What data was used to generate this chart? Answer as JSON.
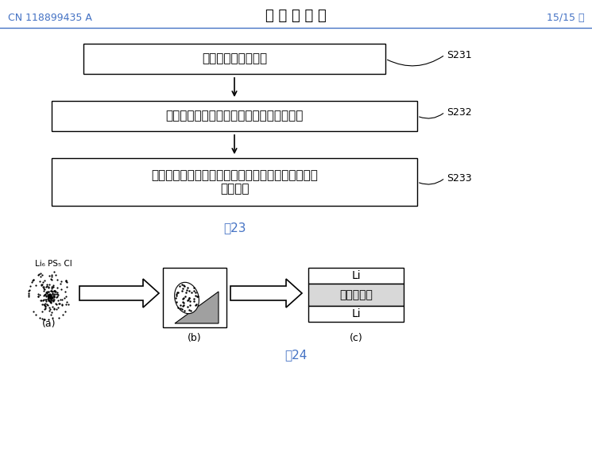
{
  "bg_color": "#ffffff",
  "header_left": "CN 118899435 A",
  "header_center": "说 明 书 附 图",
  "header_right": "15/15 页",
  "header_color": "#4472c4",
  "header_line_color": "#4472c4",
  "box1_text": "形成掺杂硫化物材料",
  "box2_text": "利用掺杂硫化物材料形成硫化物固态电解质",
  "box3_text": "组装金属锂负极、硫化物固态电解质和正极，得到锂\n离子电池",
  "label_s231": "S231",
  "label_s232": "S232",
  "label_s233": "S233",
  "fig23_label": "图23",
  "fig24_label": "图24",
  "fig_label_color": "#4472c4",
  "powder_label": "Li₆ PS₅ Cl",
  "sub_a": "(a)",
  "sub_b": "(b)",
  "sub_c": "(c)",
  "li_top": "Li",
  "electrolyte_label": "固态电解质",
  "li_bottom": "Li"
}
